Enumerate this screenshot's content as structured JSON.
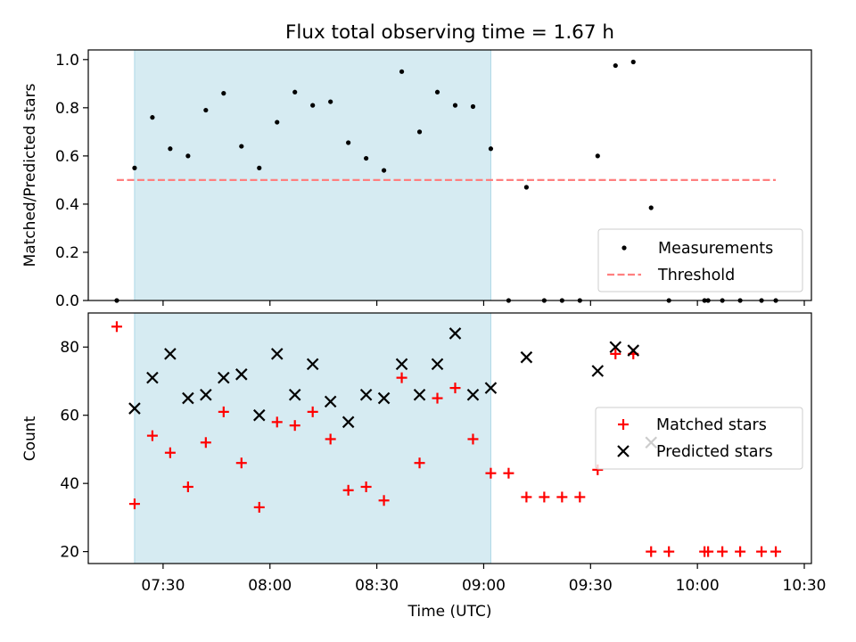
{
  "chart_data": [
    {
      "type": "scatter",
      "title": "Flux total observing time = 1.67 h",
      "ylabel": "Matched/Predicted stars",
      "xlabel": "",
      "ylim": [
        0,
        1.04
      ],
      "yticks": [
        "0.0",
        "0.2",
        "0.4",
        "0.6",
        "0.8",
        "1.0"
      ],
      "ytick_values": [
        0,
        0.2,
        0.4,
        0.6,
        0.8,
        1.0
      ],
      "shaded_span": [
        "07:22",
        "09:02"
      ],
      "threshold": {
        "name": "Threshold",
        "value": 0.5,
        "x_range": [
          "07:17",
          "10:22"
        ],
        "color": "#ff7f7f"
      },
      "series": [
        {
          "name": "Measurements",
          "color": "#000000",
          "marker": "dot",
          "points": [
            [
              "07:17",
              0.0
            ],
            [
              "07:22",
              0.55
            ],
            [
              "07:27",
              0.76
            ],
            [
              "07:32",
              0.63
            ],
            [
              "07:37",
              0.6
            ],
            [
              "07:42",
              0.79
            ],
            [
              "07:47",
              0.86
            ],
            [
              "07:52",
              0.64
            ],
            [
              "07:57",
              0.55
            ],
            [
              "08:02",
              0.74
            ],
            [
              "08:07",
              0.865
            ],
            [
              "08:12",
              0.81
            ],
            [
              "08:17",
              0.825
            ],
            [
              "08:22",
              0.655
            ],
            [
              "08:27",
              0.59
            ],
            [
              "08:32",
              0.54
            ],
            [
              "08:37",
              0.95
            ],
            [
              "08:42",
              0.7
            ],
            [
              "08:47",
              0.865
            ],
            [
              "08:52",
              0.81
            ],
            [
              "08:57",
              0.805
            ],
            [
              "09:02",
              0.63
            ],
            [
              "09:07",
              0.0
            ],
            [
              "09:12",
              0.47
            ],
            [
              "09:17",
              0.0
            ],
            [
              "09:22",
              0.0
            ],
            [
              "09:27",
              0.0
            ],
            [
              "09:32",
              0.6
            ],
            [
              "09:37",
              0.975
            ],
            [
              "09:42",
              0.99
            ],
            [
              "09:47",
              0.385
            ],
            [
              "09:52",
              0.0
            ],
            [
              "10:02",
              0.0
            ],
            [
              "10:03",
              0.0
            ],
            [
              "10:07",
              0.0
            ],
            [
              "10:12",
              0.0
            ],
            [
              "10:18",
              0.0
            ],
            [
              "10:22",
              0.0
            ]
          ]
        }
      ],
      "legend": {
        "placement": "lower-right",
        "entries": [
          "Measurements",
          "Threshold"
        ]
      }
    },
    {
      "type": "scatter",
      "title": "",
      "ylabel": "Count",
      "xlabel": "Time (UTC)",
      "ylim": [
        16.5,
        90
      ],
      "yticks": [
        "20",
        "40",
        "60",
        "80"
      ],
      "ytick_values": [
        20,
        40,
        60,
        80
      ],
      "xlim": [
        "07:09",
        "10:32"
      ],
      "xticks": [
        "07:30",
        "08:00",
        "08:30",
        "09:00",
        "09:30",
        "10:00",
        "10:30"
      ],
      "shaded_span": [
        "07:22",
        "09:02"
      ],
      "series": [
        {
          "name": "Matched stars",
          "color": "#ff0000",
          "marker": "plus",
          "points": [
            [
              "07:17",
              86
            ],
            [
              "07:22",
              34
            ],
            [
              "07:27",
              54
            ],
            [
              "07:32",
              49
            ],
            [
              "07:37",
              39
            ],
            [
              "07:42",
              52
            ],
            [
              "07:47",
              61
            ],
            [
              "07:52",
              46
            ],
            [
              "07:57",
              33
            ],
            [
              "08:02",
              58
            ],
            [
              "08:07",
              57
            ],
            [
              "08:12",
              61
            ],
            [
              "08:17",
              53
            ],
            [
              "08:22",
              38
            ],
            [
              "08:27",
              39
            ],
            [
              "08:32",
              35
            ],
            [
              "08:37",
              71
            ],
            [
              "08:42",
              46
            ],
            [
              "08:47",
              65
            ],
            [
              "08:52",
              68
            ],
            [
              "08:57",
              53
            ],
            [
              "09:02",
              43
            ],
            [
              "09:07",
              43
            ],
            [
              "09:12",
              36
            ],
            [
              "09:17",
              36
            ],
            [
              "09:22",
              36
            ],
            [
              "09:27",
              36
            ],
            [
              "09:32",
              44
            ],
            [
              "09:37",
              78
            ],
            [
              "09:42",
              78
            ],
            [
              "09:47",
              20
            ],
            [
              "09:52",
              20
            ],
            [
              "10:02",
              20
            ],
            [
              "10:03",
              20
            ],
            [
              "10:07",
              20
            ],
            [
              "10:12",
              20
            ],
            [
              "10:18",
              20
            ],
            [
              "10:22",
              20
            ]
          ]
        },
        {
          "name": "Predicted stars",
          "color": "#000000",
          "marker": "x",
          "points": [
            [
              "07:22",
              62
            ],
            [
              "07:27",
              71
            ],
            [
              "07:32",
              78
            ],
            [
              "07:37",
              65
            ],
            [
              "07:42",
              66
            ],
            [
              "07:47",
              71
            ],
            [
              "07:52",
              72
            ],
            [
              "07:57",
              60
            ],
            [
              "08:02",
              78
            ],
            [
              "08:07",
              66
            ],
            [
              "08:12",
              75
            ],
            [
              "08:17",
              64
            ],
            [
              "08:22",
              58
            ],
            [
              "08:27",
              66
            ],
            [
              "08:32",
              65
            ],
            [
              "08:37",
              75
            ],
            [
              "08:42",
              66
            ],
            [
              "08:47",
              75
            ],
            [
              "08:52",
              84
            ],
            [
              "08:57",
              66
            ],
            [
              "09:02",
              68
            ],
            [
              "09:12",
              77
            ],
            [
              "09:32",
              73
            ],
            [
              "09:37",
              80
            ],
            [
              "09:42",
              79
            ],
            [
              "09:47",
              52
            ]
          ]
        }
      ],
      "legend": {
        "placement": "center-right",
        "entries": [
          "Matched stars",
          "Predicted stars"
        ]
      }
    }
  ]
}
